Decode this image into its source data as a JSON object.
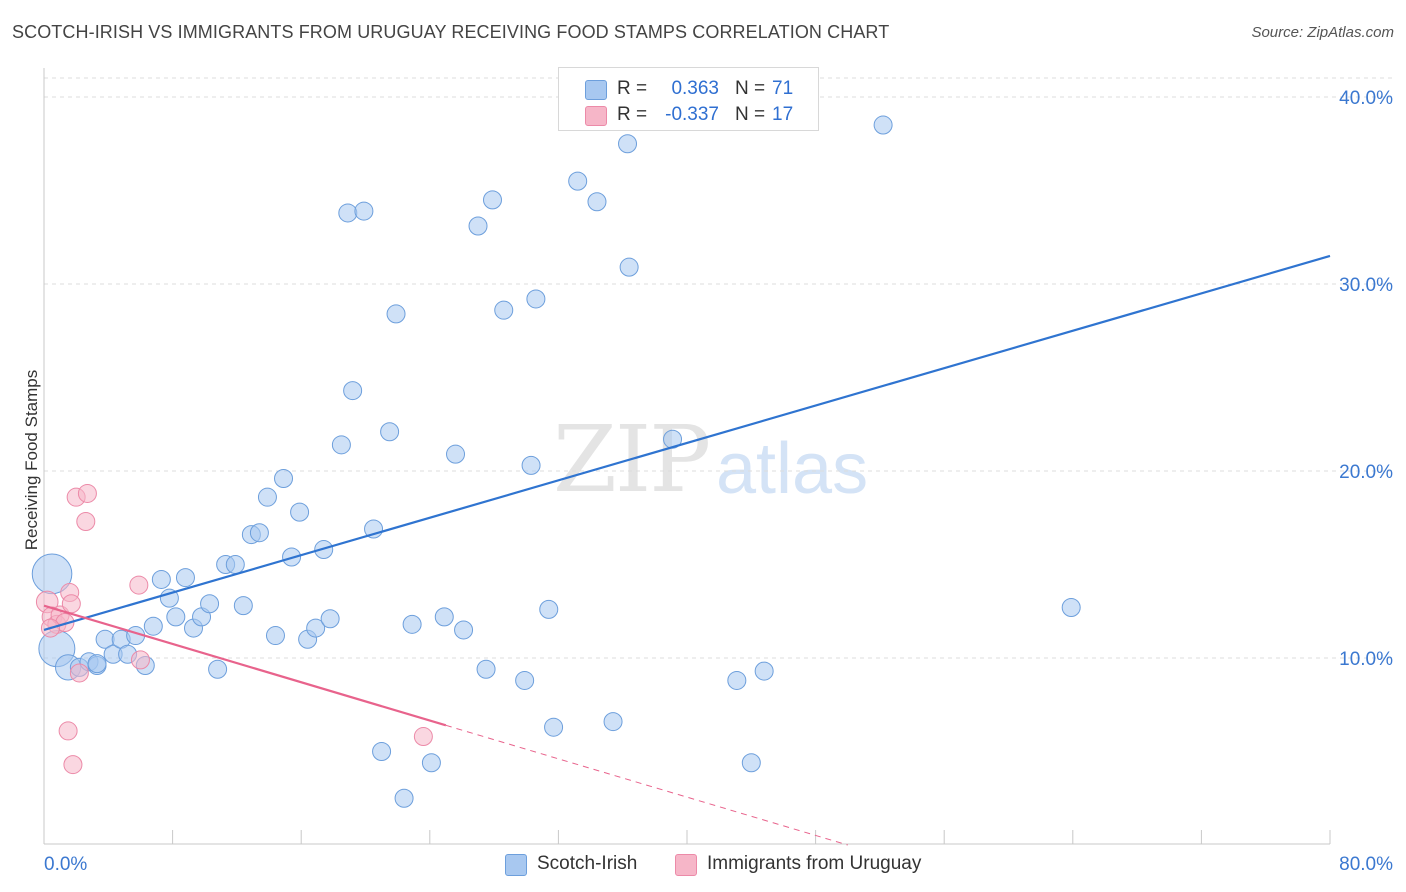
{
  "title": "SCOTCH-IRISH VS IMMIGRANTS FROM URUGUAY RECEIVING FOOD STAMPS CORRELATION CHART",
  "source": "Source: ZipAtlas.com",
  "watermark": {
    "zip": "ZIP",
    "atlas": "atlas"
  },
  "legend": {
    "r_label": "R =",
    "n_label": "N =",
    "items": [
      {
        "name": "Scotch-Irish",
        "r": "0.363",
        "n": "71",
        "color": "#a8c8f0"
      },
      {
        "name": "Immigrants from Uruguay",
        "r": "-0.337",
        "n": "17",
        "color": "#f6b6c8"
      }
    ]
  },
  "chart_data": {
    "type": "scatter",
    "title": "SCOTCH-IRISH VS IMMIGRANTS FROM URUGUAY RECEIVING FOOD STAMPS CORRELATION CHART",
    "xlabel": "",
    "ylabel": "Receiving Food Stamps",
    "xlim": [
      0,
      80
    ],
    "ylim": [
      0,
      40
    ],
    "x_tick_labels": [
      "0.0%",
      "80.0%"
    ],
    "y_tick_labels": [
      "10.0%",
      "20.0%",
      "30.0%",
      "40.0%"
    ],
    "y_ticks": [
      10,
      20,
      30,
      40
    ],
    "grid": true,
    "series": [
      {
        "name": "Scotch-Irish",
        "color": "#a8c8f0",
        "stroke": "#6d9fdc",
        "trend_color": "#2f74d0",
        "trend": {
          "x": [
            0.0,
            80.0
          ],
          "y": [
            11.5,
            31.5
          ],
          "solid_to": 80.0
        },
        "points": [
          {
            "x": 0.5,
            "y": 14.5,
            "s": 2.2
          },
          {
            "x": 0.8,
            "y": 10.5,
            "s": 2.0
          },
          {
            "x": 1.5,
            "y": 9.5,
            "s": 1.4
          },
          {
            "x": 2.2,
            "y": 9.5,
            "s": 1.0
          },
          {
            "x": 2.8,
            "y": 9.8,
            "s": 1.0
          },
          {
            "x": 3.3,
            "y": 9.6,
            "s": 1.0
          },
          {
            "x": 3.8,
            "y": 11.0,
            "s": 1.0
          },
          {
            "x": 4.3,
            "y": 10.2,
            "s": 1.0
          },
          {
            "x": 4.8,
            "y": 11.0,
            "s": 1.0
          },
          {
            "x": 5.2,
            "y": 10.2,
            "s": 1.0
          },
          {
            "x": 5.7,
            "y": 11.2,
            "s": 1.0
          },
          {
            "x": 6.3,
            "y": 9.6,
            "s": 1.0
          },
          {
            "x": 6.8,
            "y": 11.7,
            "s": 1.0
          },
          {
            "x": 7.3,
            "y": 14.2,
            "s": 1.0
          },
          {
            "x": 7.8,
            "y": 13.2,
            "s": 1.0
          },
          {
            "x": 8.2,
            "y": 12.2,
            "s": 1.0
          },
          {
            "x": 8.8,
            "y": 14.3,
            "s": 1.0
          },
          {
            "x": 9.3,
            "y": 11.6,
            "s": 1.0
          },
          {
            "x": 9.8,
            "y": 12.2,
            "s": 1.0
          },
          {
            "x": 10.3,
            "y": 12.9,
            "s": 1.0
          },
          {
            "x": 10.8,
            "y": 9.4,
            "s": 1.0
          },
          {
            "x": 11.3,
            "y": 15.0,
            "s": 1.0
          },
          {
            "x": 11.9,
            "y": 15.0,
            "s": 1.0
          },
          {
            "x": 12.4,
            "y": 12.8,
            "s": 1.0
          },
          {
            "x": 12.9,
            "y": 16.6,
            "s": 1.0
          },
          {
            "x": 13.4,
            "y": 16.7,
            "s": 1.0
          },
          {
            "x": 13.9,
            "y": 18.6,
            "s": 1.0
          },
          {
            "x": 14.4,
            "y": 11.2,
            "s": 1.0
          },
          {
            "x": 14.9,
            "y": 19.6,
            "s": 1.0
          },
          {
            "x": 15.4,
            "y": 15.4,
            "s": 1.0
          },
          {
            "x": 15.9,
            "y": 17.8,
            "s": 1.0
          },
          {
            "x": 16.4,
            "y": 11.0,
            "s": 1.0
          },
          {
            "x": 16.9,
            "y": 11.6,
            "s": 1.0
          },
          {
            "x": 17.4,
            "y": 15.8,
            "s": 1.0
          },
          {
            "x": 17.8,
            "y": 12.1,
            "s": 1.0
          },
          {
            "x": 18.5,
            "y": 21.4,
            "s": 1.0
          },
          {
            "x": 18.9,
            "y": 33.8,
            "s": 1.0
          },
          {
            "x": 19.2,
            "y": 24.3,
            "s": 1.0
          },
          {
            "x": 19.9,
            "y": 33.9,
            "s": 1.0
          },
          {
            "x": 20.5,
            "y": 16.9,
            "s": 1.0
          },
          {
            "x": 21.0,
            "y": 5.0,
            "s": 1.0
          },
          {
            "x": 21.5,
            "y": 22.1,
            "s": 1.0
          },
          {
            "x": 21.9,
            "y": 28.4,
            "s": 1.0
          },
          {
            "x": 22.4,
            "y": 2.5,
            "s": 1.0
          },
          {
            "x": 22.9,
            "y": 11.8,
            "s": 1.0
          },
          {
            "x": 24.1,
            "y": 4.4,
            "s": 1.0
          },
          {
            "x": 24.9,
            "y": 12.2,
            "s": 1.0
          },
          {
            "x": 25.6,
            "y": 20.9,
            "s": 1.0
          },
          {
            "x": 26.1,
            "y": 11.5,
            "s": 1.0
          },
          {
            "x": 27.0,
            "y": 33.1,
            "s": 1.0
          },
          {
            "x": 27.5,
            "y": 9.4,
            "s": 1.0
          },
          {
            "x": 27.9,
            "y": 34.5,
            "s": 1.0
          },
          {
            "x": 28.6,
            "y": 28.6,
            "s": 1.0
          },
          {
            "x": 29.9,
            "y": 8.8,
            "s": 1.0
          },
          {
            "x": 30.3,
            "y": 20.3,
            "s": 1.0
          },
          {
            "x": 30.6,
            "y": 29.2,
            "s": 1.0
          },
          {
            "x": 31.4,
            "y": 12.6,
            "s": 1.0
          },
          {
            "x": 31.7,
            "y": 6.3,
            "s": 1.0
          },
          {
            "x": 33.2,
            "y": 35.5,
            "s": 1.0
          },
          {
            "x": 34.4,
            "y": 34.4,
            "s": 1.0
          },
          {
            "x": 35.4,
            "y": 6.6,
            "s": 1.0
          },
          {
            "x": 36.3,
            "y": 37.5,
            "s": 1.0
          },
          {
            "x": 36.4,
            "y": 30.9,
            "s": 1.0
          },
          {
            "x": 36.6,
            "y": 38.9,
            "s": 1.0
          },
          {
            "x": 39.1,
            "y": 21.7,
            "s": 1.0
          },
          {
            "x": 43.1,
            "y": 8.8,
            "s": 1.0
          },
          {
            "x": 44.0,
            "y": 4.4,
            "s": 1.0
          },
          {
            "x": 44.8,
            "y": 9.3,
            "s": 1.0
          },
          {
            "x": 52.2,
            "y": 38.5,
            "s": 1.0
          },
          {
            "x": 63.9,
            "y": 12.7,
            "s": 1.0
          },
          {
            "x": 3.3,
            "y": 9.7,
            "s": 1.0
          }
        ]
      },
      {
        "name": "Immigrants from Uruguay",
        "color": "#f6b6c8",
        "stroke": "#ec8aa8",
        "trend_color": "#e8638c",
        "trend": {
          "x": [
            0.0,
            50.0
          ],
          "y": [
            12.8,
            0.0
          ],
          "solid_to": 25.0
        },
        "points": [
          {
            "x": 0.2,
            "y": 13.0,
            "s": 1.2
          },
          {
            "x": 0.5,
            "y": 12.2,
            "s": 1.1
          },
          {
            "x": 0.8,
            "y": 11.8,
            "s": 1.0
          },
          {
            "x": 1.0,
            "y": 12.3,
            "s": 1.0
          },
          {
            "x": 1.3,
            "y": 11.9,
            "s": 1.0
          },
          {
            "x": 1.5,
            "y": 6.1,
            "s": 1.0
          },
          {
            "x": 1.6,
            "y": 13.5,
            "s": 1.0
          },
          {
            "x": 1.7,
            "y": 12.9,
            "s": 1.0
          },
          {
            "x": 1.8,
            "y": 4.3,
            "s": 1.0
          },
          {
            "x": 2.0,
            "y": 18.6,
            "s": 1.0
          },
          {
            "x": 2.2,
            "y": 9.2,
            "s": 1.0
          },
          {
            "x": 2.6,
            "y": 17.3,
            "s": 1.0
          },
          {
            "x": 2.7,
            "y": 18.8,
            "s": 1.0
          },
          {
            "x": 5.9,
            "y": 13.9,
            "s": 1.0
          },
          {
            "x": 6.0,
            "y": 9.9,
            "s": 1.0
          },
          {
            "x": 23.6,
            "y": 5.8,
            "s": 1.0
          },
          {
            "x": 0.4,
            "y": 11.6,
            "s": 1.0
          }
        ]
      }
    ]
  }
}
